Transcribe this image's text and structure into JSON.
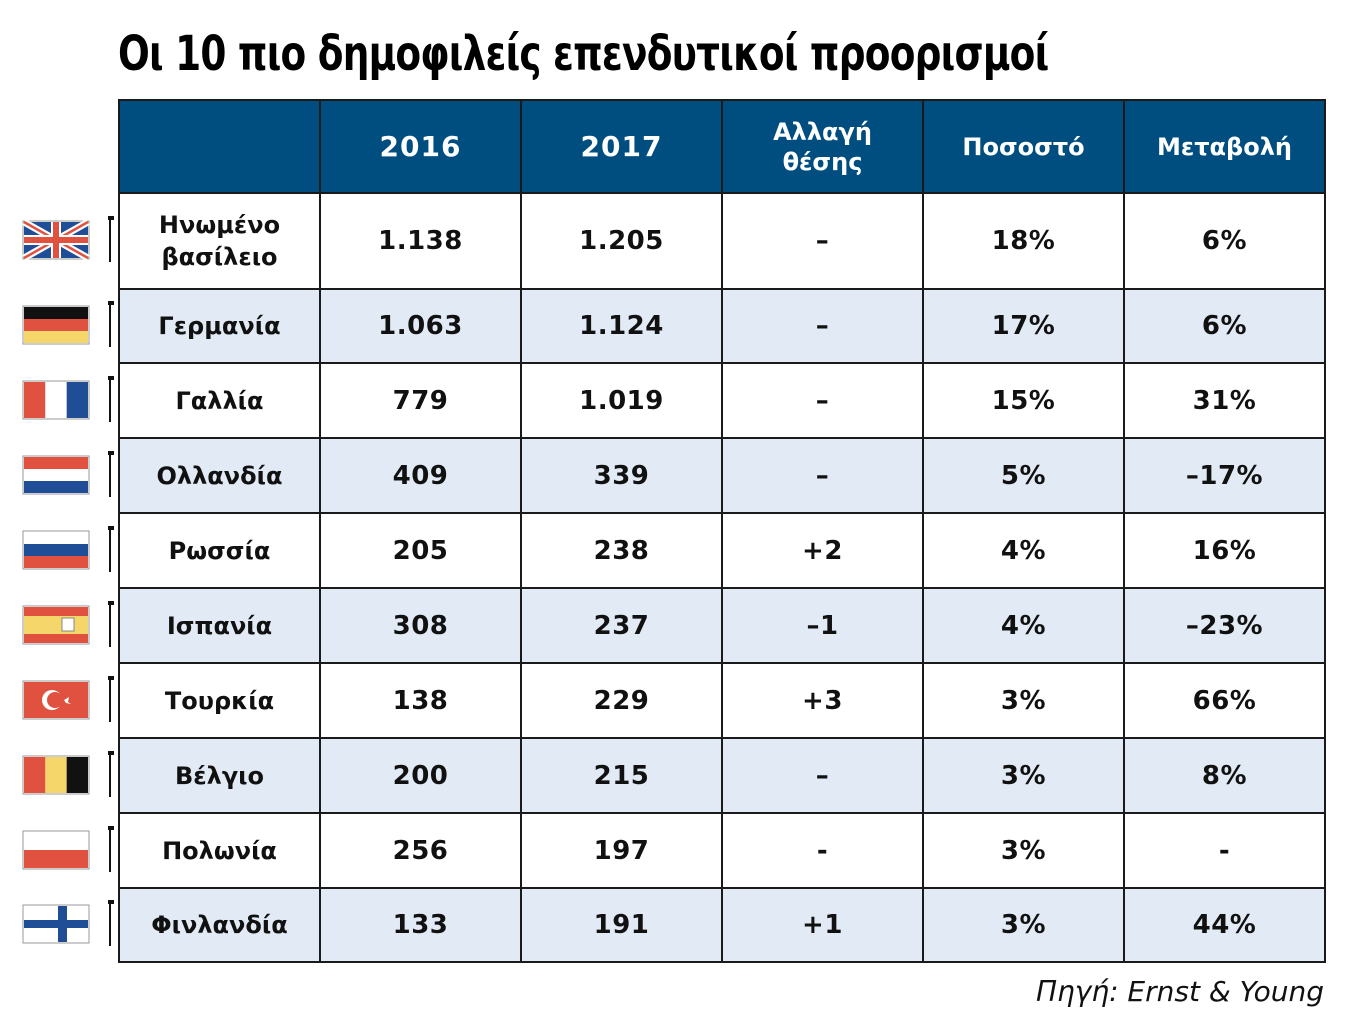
{
  "title": "Οι 10 πιο δημοφιλείς επενδυτικοί προορισμοί",
  "chart_data": {
    "type": "table",
    "title": "Οι 10 πιο δημοφιλείς επενδυτικοί προορισμοί",
    "columns": [
      "",
      "2016",
      "2017",
      "Αλλαγή θέσης",
      "Ποσοστό",
      "Μεταβολή"
    ],
    "rows": [
      {
        "country": "Ηνωμένο βασίλειο",
        "y2016": "1.138",
        "y2017": "1.205",
        "change": "–",
        "share": "18%",
        "delta": "6%",
        "flag": "uk-flag-icon"
      },
      {
        "country": "Γερμανία",
        "y2016": "1.063",
        "y2017": "1.124",
        "change": "–",
        "share": "17%",
        "delta": "6%",
        "flag": "germany-flag-icon"
      },
      {
        "country": "Γαλλία",
        "y2016": "779",
        "y2017": "1.019",
        "change": "–",
        "share": "15%",
        "delta": "31%",
        "flag": "france-flag-icon"
      },
      {
        "country": "Ολλανδία",
        "y2016": "409",
        "y2017": "339",
        "change": "–",
        "share": "5%",
        "delta": "–17%",
        "flag": "netherlands-flag-icon"
      },
      {
        "country": "Ρωσσία",
        "y2016": "205",
        "y2017": "238",
        "change": "+2",
        "share": "4%",
        "delta": "16%",
        "flag": "russia-flag-icon"
      },
      {
        "country": "Ισπανία",
        "y2016": "308",
        "y2017": "237",
        "change": "–1",
        "share": "4%",
        "delta": "–23%",
        "flag": "spain-flag-icon"
      },
      {
        "country": "Τουρκία",
        "y2016": "138",
        "y2017": "229",
        "change": "+3",
        "share": "3%",
        "delta": "66%",
        "flag": "turkey-flag-icon"
      },
      {
        "country": "Βέλγιο",
        "y2016": "200",
        "y2017": "215",
        "change": "–",
        "share": "3%",
        "delta": "8%",
        "flag": "belgium-flag-icon"
      },
      {
        "country": "Πολωνία",
        "y2016": "256",
        "y2017": "197",
        "change": "-",
        "share": "3%",
        "delta": "-",
        "flag": "poland-flag-icon"
      },
      {
        "country": "Φινλανδία",
        "y2016": "133",
        "y2017": "191",
        "change": "+1",
        "share": "3%",
        "delta": "44%",
        "flag": "finland-flag-icon"
      }
    ]
  },
  "header": {
    "col_blank": "",
    "col_2016": "2016",
    "col_2017": "2017",
    "col_change_line1": "Αλλαγή",
    "col_change_line2": "θέσης",
    "col_share": "Ποσοστό",
    "col_delta": "Μεταβολή"
  },
  "colors": {
    "header_bg": "#004d80",
    "row_alt_bg": "#e2ebf5",
    "flag_red": "#e0523f",
    "flag_blue": "#1f4e96",
    "flag_yellow": "#f5d66a",
    "flag_black": "#111111"
  },
  "source": "Πηγή: Ernst & Young"
}
